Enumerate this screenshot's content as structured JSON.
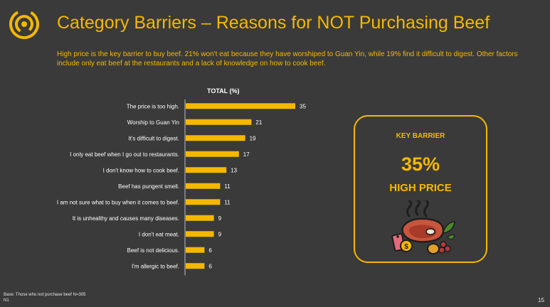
{
  "header": {
    "title": "Category Barriers – Reasons for NOT Purchasing Beef",
    "subtitle": "High price is the key barrier to buy beef. 21% won't eat because they have worshiped to Guan Yin, while 19% find it difficult to digest. Other factors include only eat beef at the restaurants and a lack of knowledge on how to cook beef."
  },
  "chart_data": {
    "type": "bar",
    "orientation": "horizontal",
    "title": "TOTAL (%)",
    "categories": [
      "The price is too high.",
      "Worship to Guan Yin",
      "It's difficult to digest.",
      "I only eat beef when I go out to restaurants.",
      "I don't know how to cook beef.",
      "Beef has pungent smell.",
      "I am not sure what to buy when it comes to beef.",
      "It is unhealthy and causes many diseases.",
      "I don't eat meat.",
      "Beef is not delicious.",
      "I'm allergic to beef."
    ],
    "values": [
      35,
      21,
      19,
      17,
      13,
      11,
      11,
      9,
      9,
      6,
      6
    ],
    "xlim": [
      0,
      35
    ],
    "grid": false,
    "legend": "none",
    "bar_color": "#f5b800"
  },
  "key_barrier": {
    "label": "KEY BARRIER",
    "value": "35%",
    "text": "HIGH PRICE",
    "icon": "steak-food-icon"
  },
  "footer": {
    "base_note_line1": "Base: Those who not purchase beef N=305",
    "base_note_line2": "N1",
    "page_number": "15"
  },
  "colors": {
    "accent": "#f5b800",
    "background": "#3a3a3a"
  }
}
